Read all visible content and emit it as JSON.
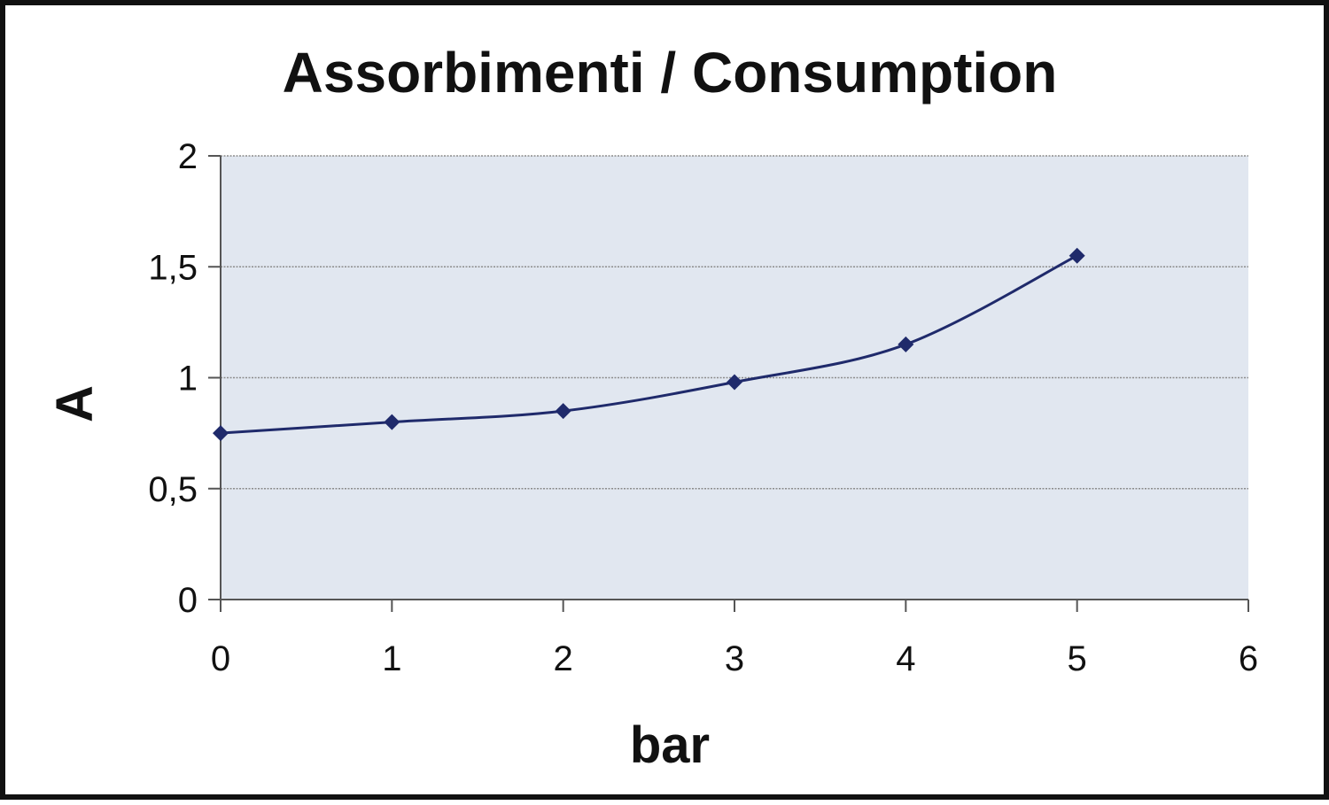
{
  "chart_data": {
    "type": "line",
    "title": "Assorbimenti / Consumption",
    "xlabel": "bar",
    "ylabel": "A",
    "xlim": [
      0,
      6
    ],
    "ylim": [
      0,
      2
    ],
    "x_ticks": [
      0,
      1,
      2,
      3,
      4,
      5,
      6
    ],
    "x_tick_labels": [
      "0",
      "1",
      "2",
      "3",
      "4",
      "5",
      "6"
    ],
    "y_ticks": [
      0,
      0.5,
      1,
      1.5,
      2
    ],
    "y_tick_labels": [
      "0",
      "0,5",
      "1",
      "1,5",
      "2"
    ],
    "grid": "horizontal",
    "legend": "none",
    "series": [
      {
        "x": [
          0,
          1,
          2,
          3,
          4,
          5
        ],
        "y": [
          0.75,
          0.8,
          0.85,
          0.98,
          1.15,
          1.55
        ],
        "color": "#1f2a6b",
        "marker": "diamond",
        "smooth": true
      }
    ],
    "colors": {
      "plot_background": "#e1e7f0",
      "grid": "#8c8c8c",
      "axis": "#555555",
      "frame": "#111111"
    }
  }
}
